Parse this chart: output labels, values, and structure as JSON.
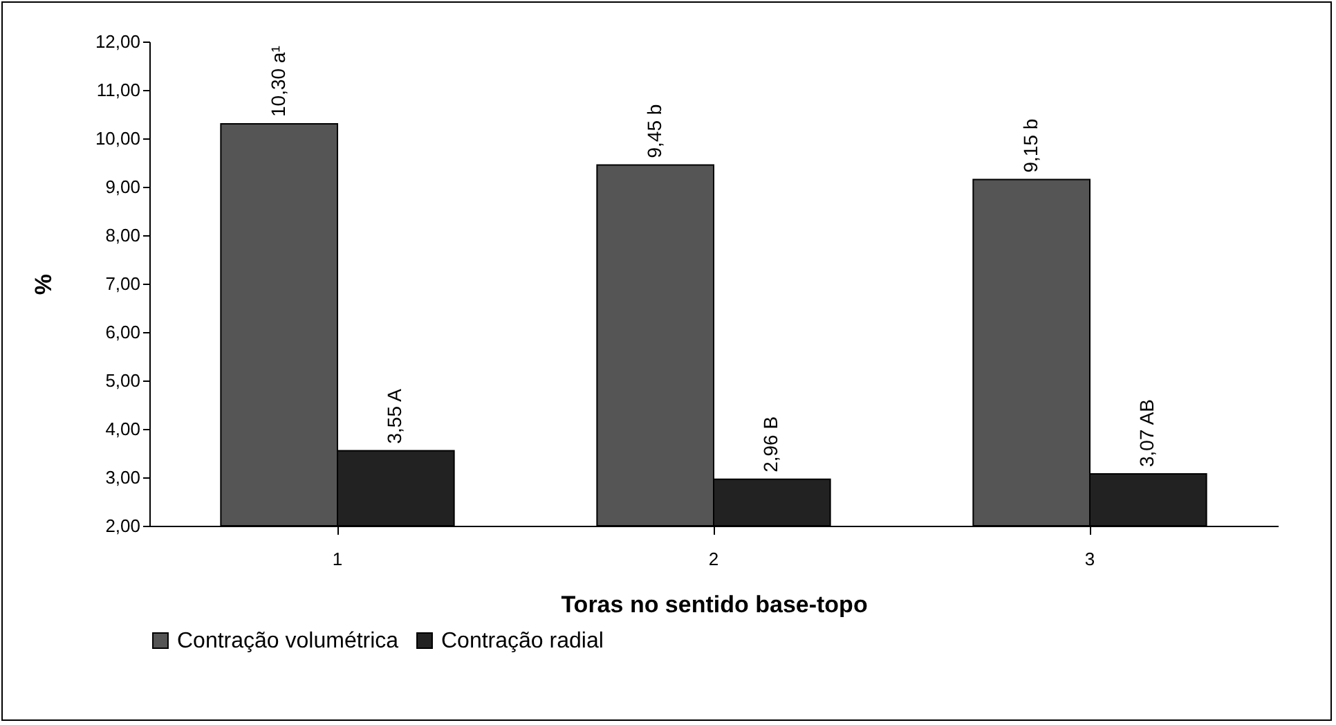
{
  "chart_data": {
    "type": "bar",
    "xlabel": "Toras no sentido base-topo",
    "ylabel": "%",
    "categories": [
      "1",
      "2",
      "3"
    ],
    "series": [
      {
        "name": "Contração volumétrica",
        "color": "#555555",
        "values": [
          10.3,
          9.45,
          9.15
        ],
        "value_labels": [
          "10,30 a¹",
          "9,45 b",
          "9,15 b"
        ]
      },
      {
        "name": "Contração radial",
        "color": "#222222",
        "values": [
          3.55,
          2.96,
          3.07
        ],
        "value_labels": [
          "3,55 A",
          "2,96 B",
          "3,07 AB"
        ]
      }
    ],
    "ylim": [
      2,
      12
    ],
    "yticks": [
      {
        "value": 2,
        "label": "2,00"
      },
      {
        "value": 3,
        "label": "3,00"
      },
      {
        "value": 4,
        "label": "4,00"
      },
      {
        "value": 5,
        "label": "5,00"
      },
      {
        "value": 6,
        "label": "6,00"
      },
      {
        "value": 7,
        "label": "7,00"
      },
      {
        "value": 8,
        "label": "8,00"
      },
      {
        "value": 9,
        "label": "9,00"
      },
      {
        "value": 10,
        "label": "10,00"
      },
      {
        "value": 11,
        "label": "11,00"
      },
      {
        "value": 12,
        "label": "12,00"
      }
    ],
    "grid": false,
    "legend": "bottom"
  }
}
